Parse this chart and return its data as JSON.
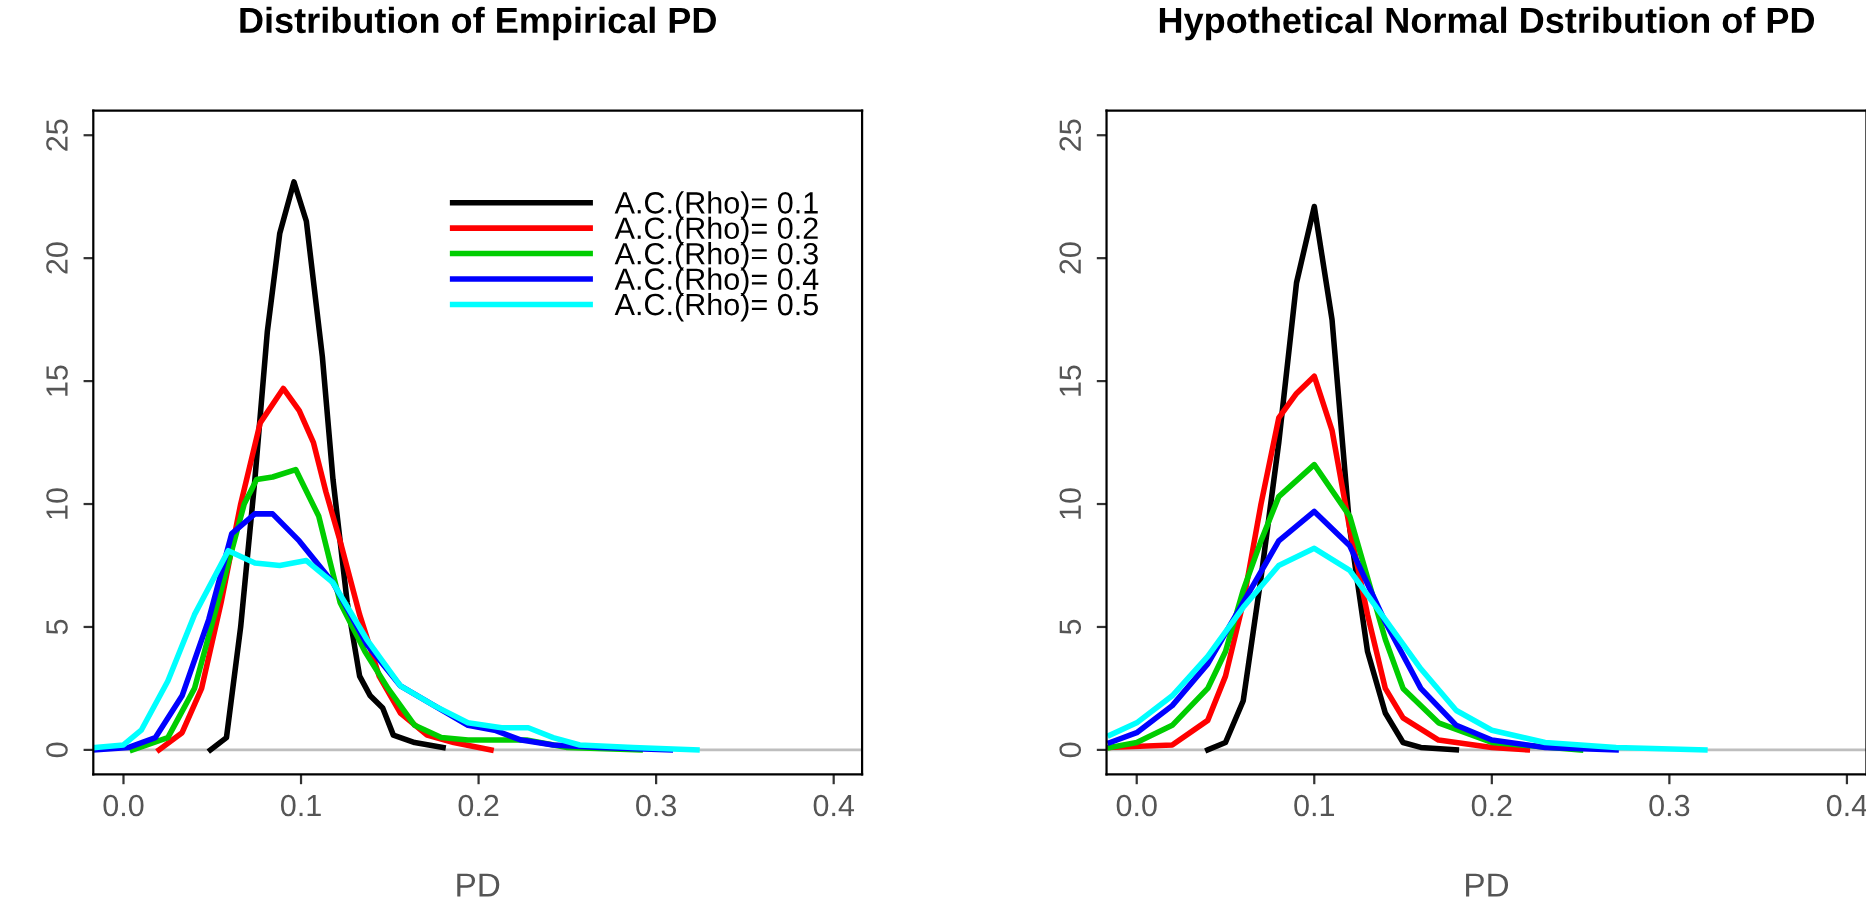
{
  "chart_data": [
    {
      "type": "line",
      "title": "Distribution of Empirical PD",
      "xlabel": "PD",
      "xlim": [
        -0.017,
        0.416
      ],
      "ylim": [
        -1,
        26
      ],
      "xticks": [
        {
          "value": 0.0,
          "label": "0.0"
        },
        0.1,
        0.2,
        0.3,
        0.4
      ],
      "yticks": [
        0,
        5,
        10,
        15,
        20,
        25
      ],
      "grid": false,
      "legend": "top right",
      "marker": "none",
      "line_style": "solid",
      "ref_lines": [
        {
          "axis": "y",
          "value": 0,
          "color": "#bebebe"
        }
      ],
      "series": [
        {
          "name": "A.C.(Rho)= 0.1",
          "color": "#000000",
          "x": [
            0.049,
            0.058,
            0.066,
            0.074,
            0.081,
            0.088,
            0.096,
            0.103,
            0.112,
            0.118,
            0.126,
            0.133,
            0.139,
            0.146,
            0.152,
            0.164,
            0.18
          ],
          "values": [
            0,
            0.5,
            5,
            11,
            17,
            21,
            23.1,
            21.5,
            16,
            11,
            6,
            3,
            2.2,
            1.7,
            0.6,
            0.3,
            0.1
          ]
        },
        {
          "name": "A.C.(Rho)= 0.2",
          "color": "#ff0000",
          "x": [
            0.02,
            0.033,
            0.044,
            0.055,
            0.066,
            0.077,
            0.09,
            0.099,
            0.107,
            0.114,
            0.122,
            0.133,
            0.144,
            0.156,
            0.171,
            0.186,
            0.207
          ],
          "values": [
            0,
            0.7,
            2.5,
            6,
            10,
            13.3,
            14.7,
            13.8,
            12.5,
            10.5,
            8.5,
            5.5,
            3,
            1.5,
            0.6,
            0.3,
            0
          ]
        },
        {
          "name": "A.C.(Rho)= 0.3",
          "color": "#00cd00",
          "x": [
            0.005,
            0.025,
            0.04,
            0.055,
            0.068,
            0.075,
            0.084,
            0.097,
            0.11,
            0.122,
            0.136,
            0.149,
            0.164,
            0.179,
            0.194,
            0.227,
            0.25,
            0.291
          ],
          "values": [
            0,
            0.5,
            2.5,
            6.5,
            10,
            11,
            11.1,
            11.4,
            9.5,
            6,
            4,
            2.5,
            1,
            0.5,
            0.4,
            0.4,
            0.1,
            0
          ]
        },
        {
          "name": "A.C.(Rho)= 0.4",
          "color": "#0000ff",
          "x": [
            -0.016,
            0.003,
            0.018,
            0.033,
            0.048,
            0.061,
            0.074,
            0.084,
            0.099,
            0.118,
            0.137,
            0.156,
            0.175,
            0.194,
            0.209,
            0.224,
            0.242,
            0.268,
            0.308
          ],
          "values": [
            0,
            0.1,
            0.5,
            2.2,
            5.3,
            8.8,
            9.6,
            9.6,
            8.5,
            6.8,
            4.3,
            2.6,
            1.8,
            1,
            0.8,
            0.4,
            0.2,
            0.1,
            0
          ]
        },
        {
          "name": "A.C.(Rho)= 0.5",
          "color": "#00ffff",
          "x": [
            -0.016,
            0.0,
            0.01,
            0.025,
            0.04,
            0.059,
            0.074,
            0.088,
            0.103,
            0.118,
            0.137,
            0.156,
            0.175,
            0.194,
            0.213,
            0.228,
            0.242,
            0.257,
            0.287,
            0.323
          ],
          "values": [
            0.1,
            0.2,
            0.8,
            2.8,
            5.5,
            8.1,
            7.6,
            7.5,
            7.7,
            6.8,
            4.5,
            2.6,
            1.8,
            1.1,
            0.9,
            0.9,
            0.5,
            0.2,
            0.1,
            0
          ]
        }
      ]
    },
    {
      "type": "line",
      "title": "Hypothetical Normal Dstribution of PD",
      "xlabel": "PD",
      "xlim": [
        -0.017,
        0.411
      ],
      "ylim": [
        -1,
        26
      ],
      "xticks": [
        {
          "value": 0.0,
          "label": "0.0"
        },
        0.1,
        0.2,
        0.3,
        0.4
      ],
      "yticks": [
        0,
        5,
        10,
        15,
        20,
        25
      ],
      "grid": false,
      "marker": "none",
      "line_style": "solid",
      "ref_lines": [
        {
          "axis": "y",
          "value": 0,
          "color": "#bebebe"
        }
      ],
      "series": [
        {
          "color": "#000000",
          "x": [
            0.04,
            0.05,
            0.06,
            0.07,
            0.08,
            0.09,
            0.1,
            0.11,
            0.12,
            0.13,
            0.14,
            0.15,
            0.16,
            0.18
          ],
          "values": [
            0,
            0.3,
            2,
            7,
            12.5,
            19,
            22.1,
            17.5,
            9,
            4,
            1.5,
            0.3,
            0.1,
            0
          ]
        },
        {
          "color": "#ff0000",
          "x": [
            -0.015,
            0.02,
            0.04,
            0.05,
            0.06,
            0.07,
            0.08,
            0.09,
            0.1,
            0.11,
            0.12,
            0.13,
            0.14,
            0.15,
            0.17,
            0.2,
            0.22
          ],
          "values": [
            0.1,
            0.2,
            1.2,
            3,
            6,
            10,
            13.5,
            14.5,
            15.2,
            13,
            9,
            5.5,
            2.5,
            1.3,
            0.4,
            0.1,
            0
          ]
        },
        {
          "color": "#00cd00",
          "x": [
            -0.015,
            0.0,
            0.02,
            0.04,
            0.05,
            0.06,
            0.07,
            0.08,
            0.1,
            0.12,
            0.13,
            0.14,
            0.15,
            0.17,
            0.2,
            0.25
          ],
          "values": [
            0.1,
            0.3,
            1,
            2.5,
            4,
            6.5,
            8.5,
            10.3,
            11.6,
            9.5,
            7,
            4.5,
            2.5,
            1.1,
            0.3,
            0
          ]
        },
        {
          "color": "#0000ff",
          "x": [
            -0.015,
            0.0,
            0.02,
            0.04,
            0.06,
            0.08,
            0.1,
            0.12,
            0.14,
            0.16,
            0.18,
            0.2,
            0.23,
            0.27
          ],
          "values": [
            0.3,
            0.7,
            1.8,
            3.5,
            6,
            8.5,
            9.7,
            8.3,
            5.2,
            2.5,
            1,
            0.4,
            0.1,
            0
          ]
        },
        {
          "color": "#00ffff",
          "x": [
            -0.015,
            0.0,
            0.02,
            0.04,
            0.06,
            0.08,
            0.1,
            0.12,
            0.14,
            0.16,
            0.18,
            0.2,
            0.23,
            0.27,
            0.32
          ],
          "values": [
            0.6,
            1.1,
            2.2,
            3.8,
            5.8,
            7.5,
            8.2,
            7.3,
            5.3,
            3.3,
            1.6,
            0.8,
            0.3,
            0.1,
            0
          ]
        }
      ]
    }
  ]
}
